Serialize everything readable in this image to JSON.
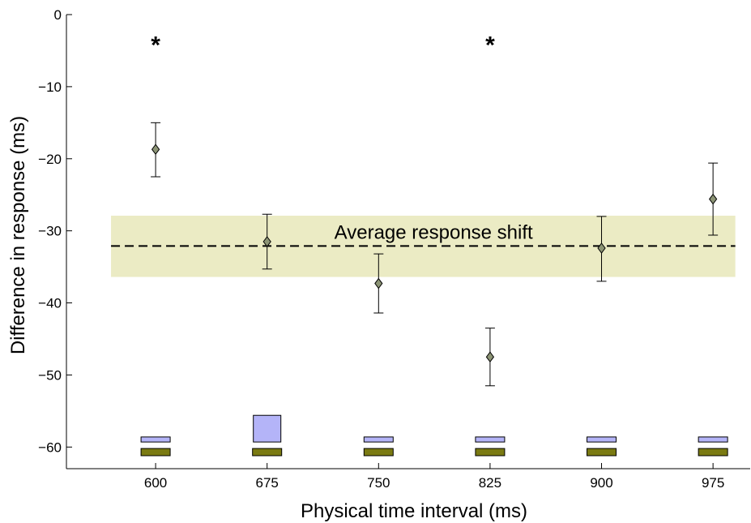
{
  "chart_data": {
    "type": "scatter",
    "xlabel": "Physical time interval (ms)",
    "ylabel": "Difference in response (ms)",
    "x_ticks": [
      600,
      675,
      750,
      825,
      900,
      975
    ],
    "y_ticks": [
      0,
      -10,
      -20,
      -30,
      -40,
      -50,
      -60
    ],
    "ylim": [
      -63,
      0
    ],
    "xlim": [
      540,
      1000
    ],
    "grid": false,
    "points": [
      {
        "x": 600,
        "y": -18.7,
        "err_low": -22.5,
        "err_high": -15.0
      },
      {
        "x": 675,
        "y": -31.5,
        "err_low": -35.3,
        "err_high": -27.7
      },
      {
        "x": 750,
        "y": -37.3,
        "err_low": -41.4,
        "err_high": -33.2
      },
      {
        "x": 825,
        "y": -47.5,
        "err_low": -51.5,
        "err_high": -43.5
      },
      {
        "x": 900,
        "y": -32.4,
        "err_low": -37.0,
        "err_high": -28.0
      },
      {
        "x": 975,
        "y": -25.6,
        "err_low": -30.6,
        "err_high": -20.6
      }
    ],
    "average_line": {
      "label": "Average response shift",
      "y": -32.1,
      "band_low": -36.4,
      "band_high": -27.9,
      "x_start": 570,
      "x_end": 990
    },
    "significance": [
      {
        "x": 600,
        "y": -4,
        "text": "*"
      },
      {
        "x": 825,
        "y": -4,
        "text": "*"
      }
    ],
    "bottom_bars_upper": [
      {
        "x": 600,
        "top": -58.6,
        "bottom": -59.3
      },
      {
        "x": 675,
        "top": -55.6,
        "bottom": -59.3
      },
      {
        "x": 750,
        "top": -58.6,
        "bottom": -59.3
      },
      {
        "x": 825,
        "top": -58.6,
        "bottom": -59.3
      },
      {
        "x": 900,
        "top": -58.6,
        "bottom": -59.3
      },
      {
        "x": 975,
        "top": -58.6,
        "bottom": -59.3
      }
    ],
    "bottom_bars_lower": [
      {
        "x": 600,
        "top": -60.2,
        "bottom": -61.2
      },
      {
        "x": 675,
        "top": -60.2,
        "bottom": -61.2
      },
      {
        "x": 750,
        "top": -60.2,
        "bottom": -61.2
      },
      {
        "x": 825,
        "top": -60.2,
        "bottom": -61.2
      },
      {
        "x": 900,
        "top": -60.2,
        "bottom": -61.2
      },
      {
        "x": 975,
        "top": -60.2,
        "bottom": -61.2
      }
    ],
    "colors": {
      "band": "#ebebc4",
      "marker": "#8c9475",
      "bar_upper": "#b4b4f8",
      "bar_lower": "#7a7a12",
      "axis": "#000000"
    }
  }
}
